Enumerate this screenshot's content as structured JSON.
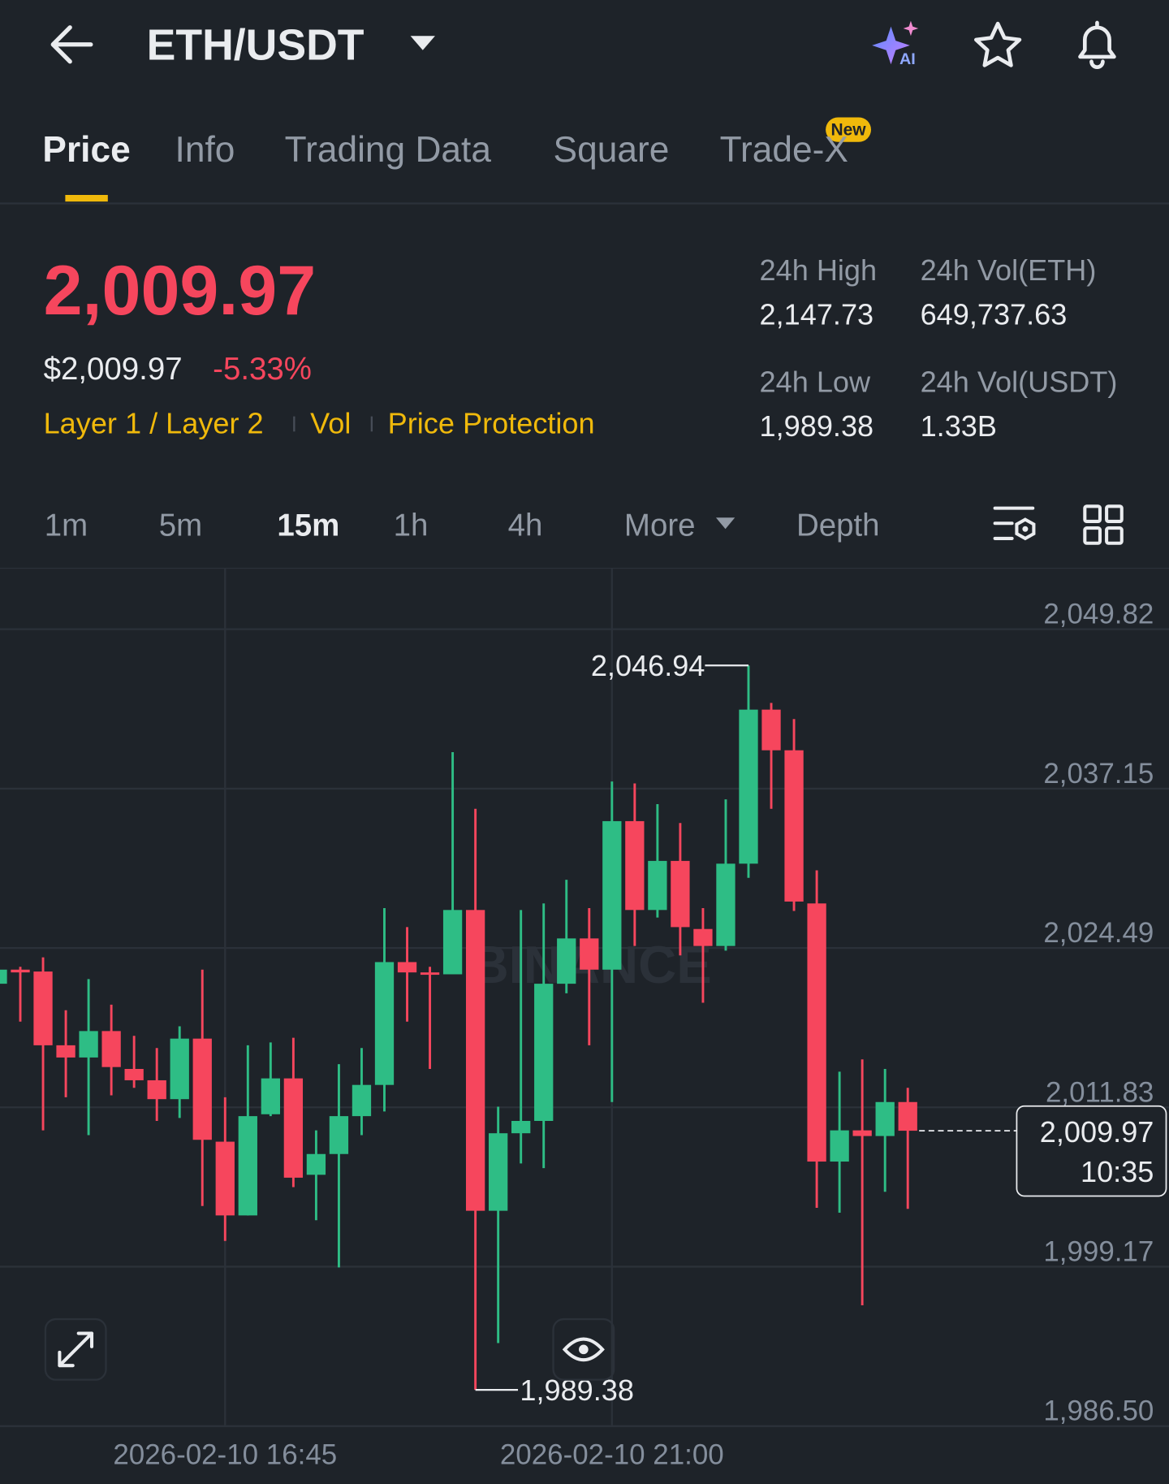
{
  "header": {
    "pair": "ETH/USDT",
    "ai_badge": "AI"
  },
  "tabs": [
    "Price",
    "Info",
    "Trading Data",
    "Square",
    "Trade-X"
  ],
  "tab_badge": "New",
  "price": {
    "last": "2,009.97",
    "usd": "$2,009.97",
    "change": "-5.33%"
  },
  "tags": [
    "Layer 1 / Layer 2",
    "Vol",
    "Price Protection"
  ],
  "stats": [
    {
      "label": "24h High",
      "value": "2,147.73"
    },
    {
      "label": "24h Vol(ETH)",
      "value": "649,737.63"
    },
    {
      "label": "24h Low",
      "value": "1,989.38"
    },
    {
      "label": "24h Vol(USDT)",
      "value": "1.33B"
    }
  ],
  "intervals": [
    "1m",
    "5m",
    "15m",
    "1h",
    "4h",
    "More",
    "Depth"
  ],
  "active_interval": 2,
  "chart_data": {
    "type": "candlestick",
    "watermark": "BINANCE",
    "categories": [
      null,
      null,
      null,
      null,
      null,
      null,
      null,
      null,
      null,
      null,
      "2026-02-10 16:45",
      null,
      null,
      null,
      null,
      null,
      null,
      null,
      null,
      null,
      null,
      null,
      null,
      null,
      null,
      null,
      null,
      "2026-02-10 21:00",
      null,
      null,
      null,
      null,
      null,
      null,
      null,
      null,
      null,
      null,
      null,
      null,
      null
    ],
    "open": [
      2021.65,
      2022.77,
      2022.62,
      2016.76,
      2015.79,
      2017.89,
      2014.88,
      2013.98,
      2012.48,
      2017.29,
      2009.1,
      2003.24,
      2011.28,
      2014.13,
      2006.47,
      2008.12,
      2011.13,
      2013.61,
      2023.37,
      2022.55,
      2022.4,
      2027.51,
      2003.61,
      2009.77,
      2010.75,
      2021.65,
      2025.25,
      2022.77,
      2034.57,
      2027.51,
      2031.41,
      2026.0,
      2024.65,
      2031.19,
      2043.43,
      2040.2,
      2028.03,
      2007.52,
      2010.0,
      2009.55,
      2012.25
    ],
    "high": [
      2023.0,
      2023.0,
      2023.75,
      2019.54,
      2022.02,
      2019.99,
      2017.51,
      2016.54,
      2018.27,
      2022.77,
      2012.63,
      2016.76,
      2016.99,
      2017.36,
      2010.0,
      2015.26,
      2016.54,
      2027.66,
      2026.15,
      2023.0,
      2040.05,
      2035.55,
      2011.88,
      2027.51,
      2028.03,
      2029.91,
      2027.66,
      2037.72,
      2037.57,
      2035.92,
      2034.42,
      2027.66,
      2036.3,
      2046.94,
      2043.96,
      2042.68,
      2030.66,
      2014.66,
      2015.64,
      2014.88,
      2013.38
    ],
    "low": [
      2020.89,
      2018.64,
      2010.0,
      2012.63,
      2009.62,
      2012.78,
      2013.38,
      2010.75,
      2010.98,
      2003.99,
      2001.21,
      2003.24,
      2011.13,
      2005.49,
      2002.86,
      1999.11,
      2009.62,
      2011.5,
      2018.64,
      2014.88,
      2022.4,
      1989.38,
      1993.1,
      2007.37,
      2007.0,
      2020.89,
      2016.76,
      2012.25,
      2024.65,
      2026.91,
      2023.9,
      2020.14,
      2024.28,
      2030.06,
      2035.55,
      2027.43,
      2003.84,
      2003.46,
      1996.1,
      2005.12,
      2003.76
    ],
    "close": [
      2022.77,
      2022.55,
      2016.76,
      2015.79,
      2017.89,
      2015.03,
      2013.98,
      2012.48,
      2017.29,
      2009.25,
      2003.24,
      2011.13,
      2014.13,
      2006.24,
      2008.12,
      2011.13,
      2013.61,
      2023.37,
      2022.55,
      2022.4,
      2027.51,
      2003.61,
      2009.77,
      2010.75,
      2021.65,
      2025.25,
      2022.77,
      2034.57,
      2027.51,
      2031.41,
      2026.15,
      2024.65,
      2031.19,
      2043.43,
      2040.2,
      2028.18,
      2007.52,
      2010.0,
      2009.55,
      2012.25,
      2009.97
    ],
    "up_color": "#2ebd85",
    "down_color": "#f6465d",
    "ylim": [
      1986.5,
      2054.7
    ],
    "yticks": [
      {
        "value": 2049.82,
        "label": "2,049.82"
      },
      {
        "value": 2037.15,
        "label": "2,037.15"
      },
      {
        "value": 2024.49,
        "label": "2,024.49"
      },
      {
        "value": 2011.83,
        "label": "2,011.83"
      },
      {
        "value": 1999.17,
        "label": "1,999.17"
      },
      {
        "value": 1986.5,
        "label": "1,986.50"
      }
    ],
    "grid": true,
    "high_label": {
      "value": 2046.94,
      "label": "2,046.94"
    },
    "low_label": {
      "value": 1989.38,
      "label": "1,989.38"
    },
    "last_label": {
      "value": 2009.97,
      "label": "2,009.97"
    },
    "countdown": "10:35"
  }
}
